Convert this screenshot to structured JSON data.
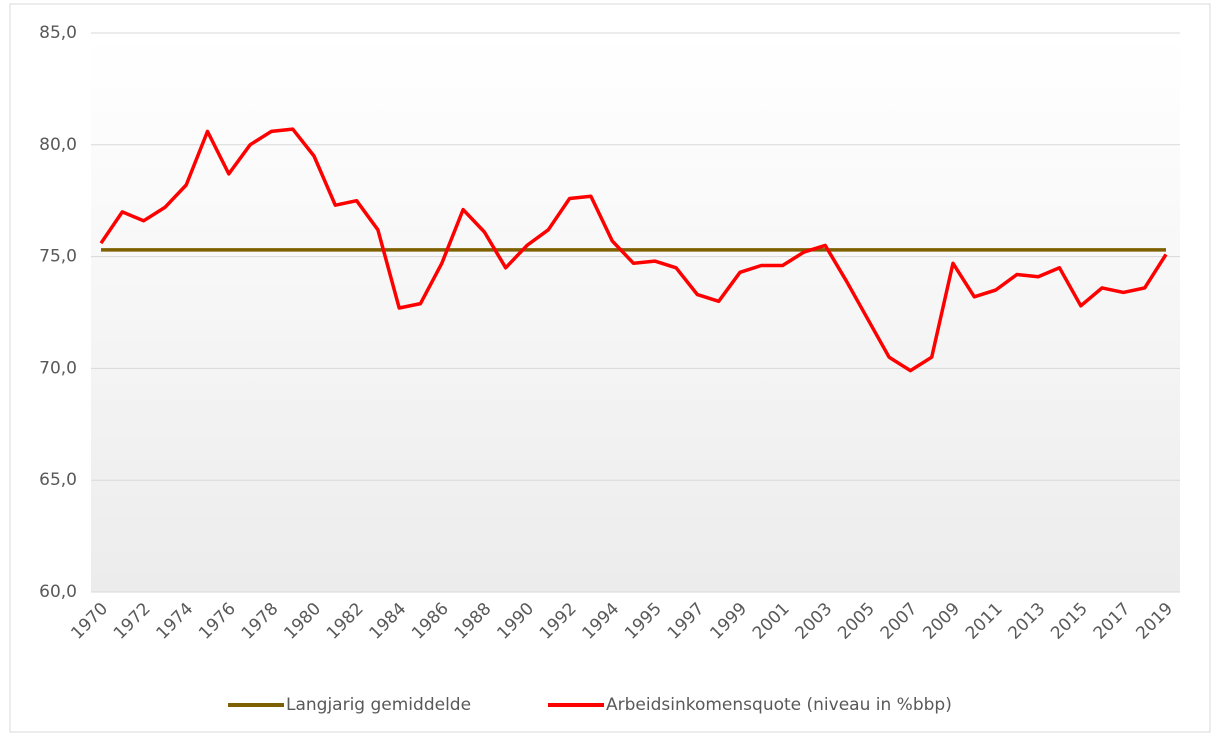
{
  "chart_data": {
    "type": "line",
    "categories": [
      "1970",
      null,
      "1972",
      null,
      "1974",
      null,
      "1976",
      null,
      "1978",
      null,
      "1980",
      null,
      "1982",
      null,
      "1984",
      null,
      "1986",
      null,
      "1988",
      null,
      "1990",
      null,
      "1992",
      null,
      "1994",
      null,
      "1995",
      null,
      "1997",
      null,
      "1999",
      null,
      "2001",
      null,
      "2003",
      null,
      "2005",
      null,
      "2007",
      null,
      "2009",
      null,
      "2011",
      null,
      "2013",
      null,
      "2015",
      null,
      "2017",
      null,
      "2019"
    ],
    "series": [
      {
        "name": "Langjarig gemiddelde",
        "color": "#7f6000",
        "values": [
          75.3,
          75.3,
          75.3,
          75.3,
          75.3,
          75.3,
          75.3,
          75.3,
          75.3,
          75.3,
          75.3,
          75.3,
          75.3,
          75.3,
          75.3,
          75.3,
          75.3,
          75.3,
          75.3,
          75.3,
          75.3,
          75.3,
          75.3,
          75.3,
          75.3,
          75.3,
          75.3,
          75.3,
          75.3,
          75.3,
          75.3,
          75.3,
          75.3,
          75.3,
          75.3,
          75.3,
          75.3,
          75.3,
          75.3,
          75.3,
          75.3,
          75.3,
          75.3,
          75.3,
          75.3,
          75.3,
          75.3,
          75.3,
          75.3,
          75.3,
          75.3
        ]
      },
      {
        "name": "Arbeidsinkomensquote (niveau in %bbp)",
        "color": "#ff0000",
        "values": [
          75.6,
          77.0,
          76.6,
          77.2,
          78.2,
          80.6,
          78.7,
          80.0,
          80.6,
          80.7,
          79.5,
          77.3,
          77.5,
          76.2,
          72.7,
          72.9,
          74.7,
          77.1,
          76.1,
          74.5,
          75.5,
          76.2,
          77.6,
          77.7,
          75.7,
          74.7,
          74.8,
          74.5,
          73.3,
          73.0,
          74.3,
          74.6,
          74.6,
          75.2,
          75.5,
          73.9,
          72.2,
          70.5,
          69.9,
          70.5,
          74.7,
          73.2,
          73.5,
          74.2,
          74.1,
          74.5,
          72.8,
          73.6,
          73.4,
          73.6,
          75.1
        ]
      }
    ],
    "ylim": [
      60,
      85
    ],
    "yticks": [
      {
        "value": 60,
        "label": "60,0"
      },
      {
        "value": 65,
        "label": "65,0"
      },
      {
        "value": 70,
        "label": "70,0"
      },
      {
        "value": 75,
        "label": "75,0"
      },
      {
        "value": 80,
        "label": "80,0"
      },
      {
        "value": 85,
        "label": "85,0"
      }
    ],
    "grid": true,
    "legend": "bottom"
  }
}
